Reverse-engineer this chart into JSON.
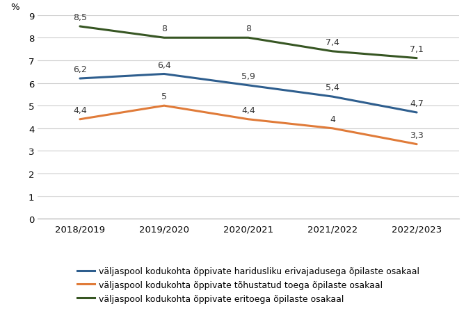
{
  "x_labels": [
    "2018/2019",
    "2019/2020",
    "2020/2021",
    "2021/2022",
    "2022/2023"
  ],
  "series": [
    {
      "label": "väljaspool kodukohta õppivate haridusliku erivajadusega õpilaste osakaal",
      "values": [
        6.2,
        6.4,
        5.9,
        5.4,
        4.7
      ],
      "color": "#2E5E8E",
      "linewidth": 2.2
    },
    {
      "label": "väljaspool kodukohta õppivate tõhustatud toega õpilaste osakaal",
      "values": [
        4.4,
        5.0,
        4.4,
        4.0,
        3.3
      ],
      "color": "#E07B39",
      "linewidth": 2.2
    },
    {
      "label": "väljaspool kodukohta õppivate eritoega õpilaste osakaal",
      "values": [
        8.5,
        8.0,
        8.0,
        7.4,
        7.1
      ],
      "color": "#375623",
      "linewidth": 2.2
    }
  ],
  "value_labels": [
    [
      "8,5",
      "8",
      "8",
      "7,4",
      "7,1"
    ],
    [
      "6,2",
      "6,4",
      "5,9",
      "5,4",
      "4,7"
    ],
    [
      "4,4",
      "5",
      "4,4",
      "4",
      "3,3"
    ]
  ],
  "ylabel": "%",
  "ylim": [
    0,
    9
  ],
  "yticks": [
    0,
    1,
    2,
    3,
    4,
    5,
    6,
    7,
    8,
    9
  ],
  "grid_color": "#CCCCCC",
  "background_color": "#FFFFFF",
  "legend_fontsize": 9,
  "label_fontsize": 9,
  "tick_fontsize": 9.5
}
